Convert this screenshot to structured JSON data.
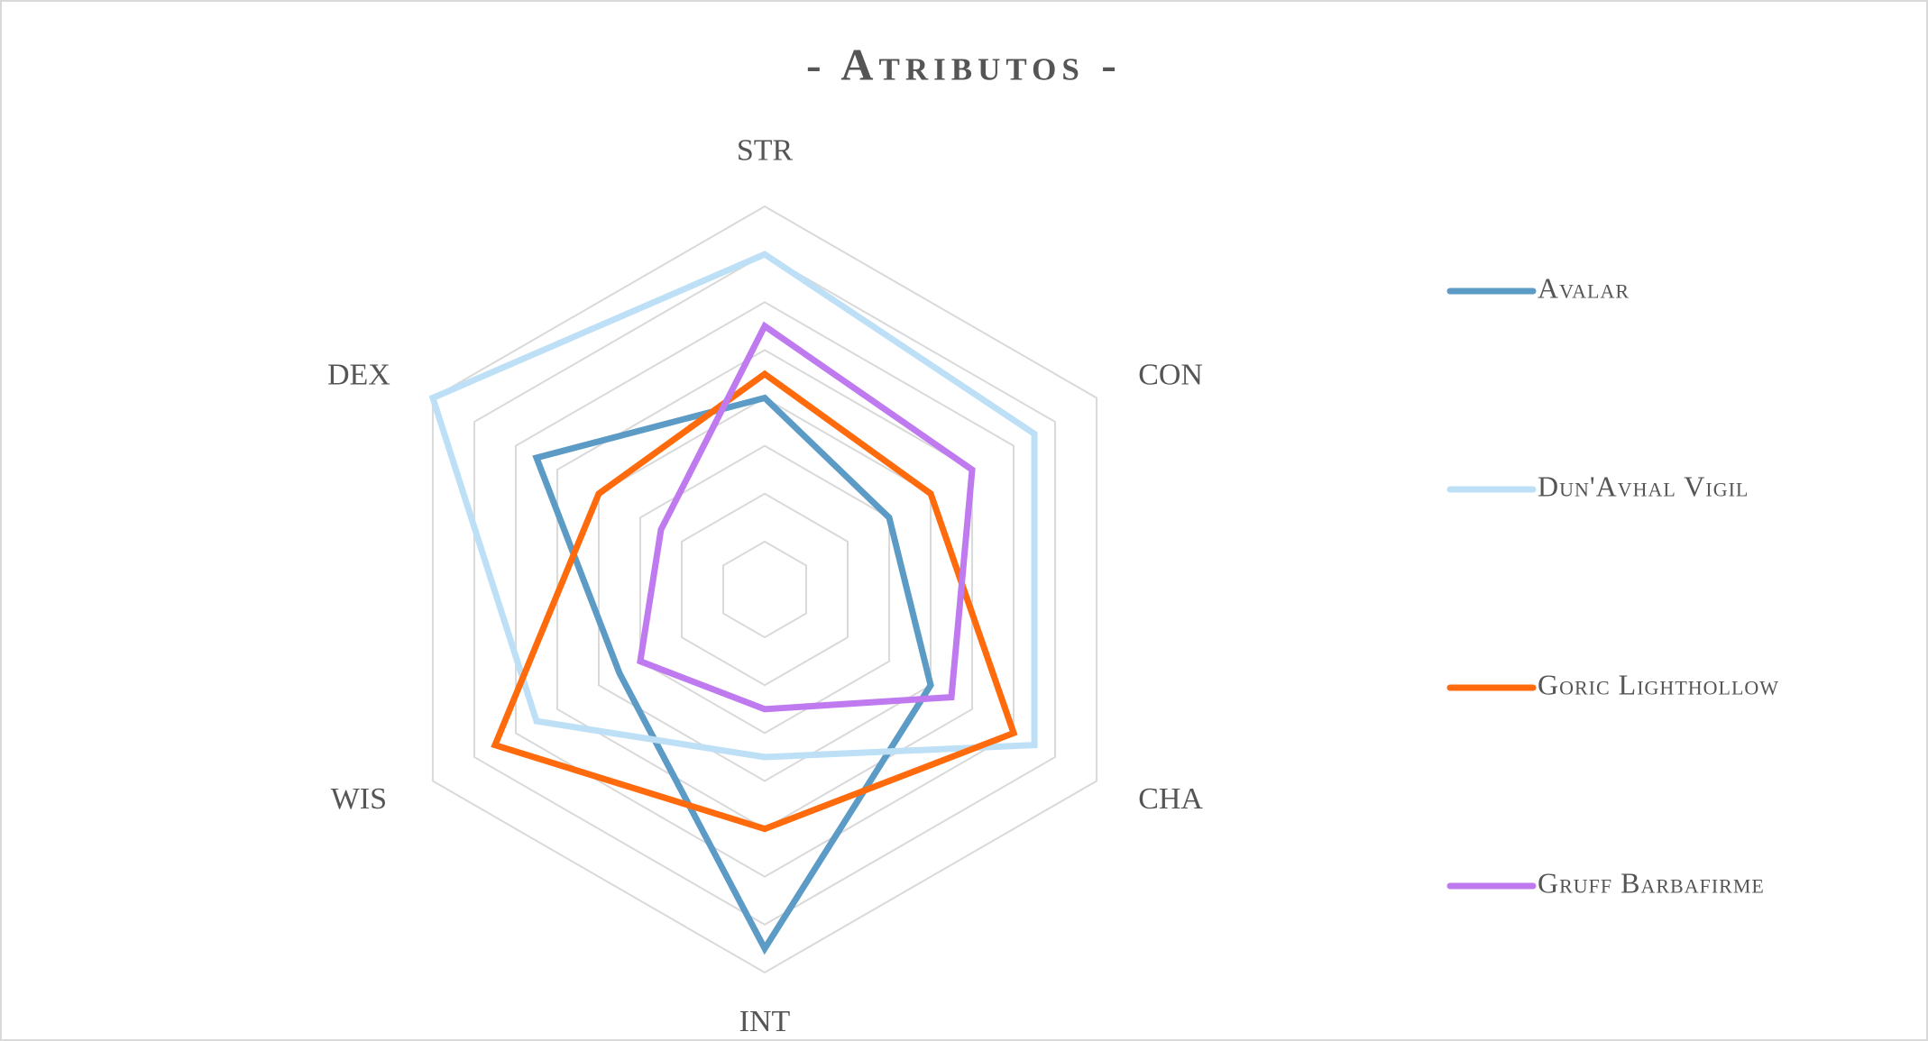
{
  "chart_data": {
    "type": "radar",
    "title": "- Atributos -",
    "categories": [
      "STR",
      "CON",
      "CHA",
      "INT",
      "WIS",
      "DEX"
    ],
    "rlim": [
      0,
      8
    ],
    "rticks": [
      1,
      2,
      3,
      4,
      5,
      6,
      7,
      8
    ],
    "grid": true,
    "legend": "right",
    "series": [
      {
        "name": "Avalar",
        "color": "#5b9bc5",
        "values": [
          4,
          3,
          4,
          7.5,
          3.5,
          5.5
        ]
      },
      {
        "name": "Dun'Avhal Vigil",
        "color": "#bde0f7",
        "values": [
          7,
          6.5,
          6.5,
          3.5,
          5.5,
          8
        ]
      },
      {
        "name": "Goric Lighthollow",
        "color": "#ff6a0d",
        "values": [
          4.5,
          4,
          6,
          5,
          6.5,
          4
        ]
      },
      {
        "name": "Gruff Barbafirme",
        "color": "#c07af0",
        "values": [
          5.5,
          5,
          4.5,
          2.5,
          3,
          2.5
        ]
      }
    ]
  }
}
